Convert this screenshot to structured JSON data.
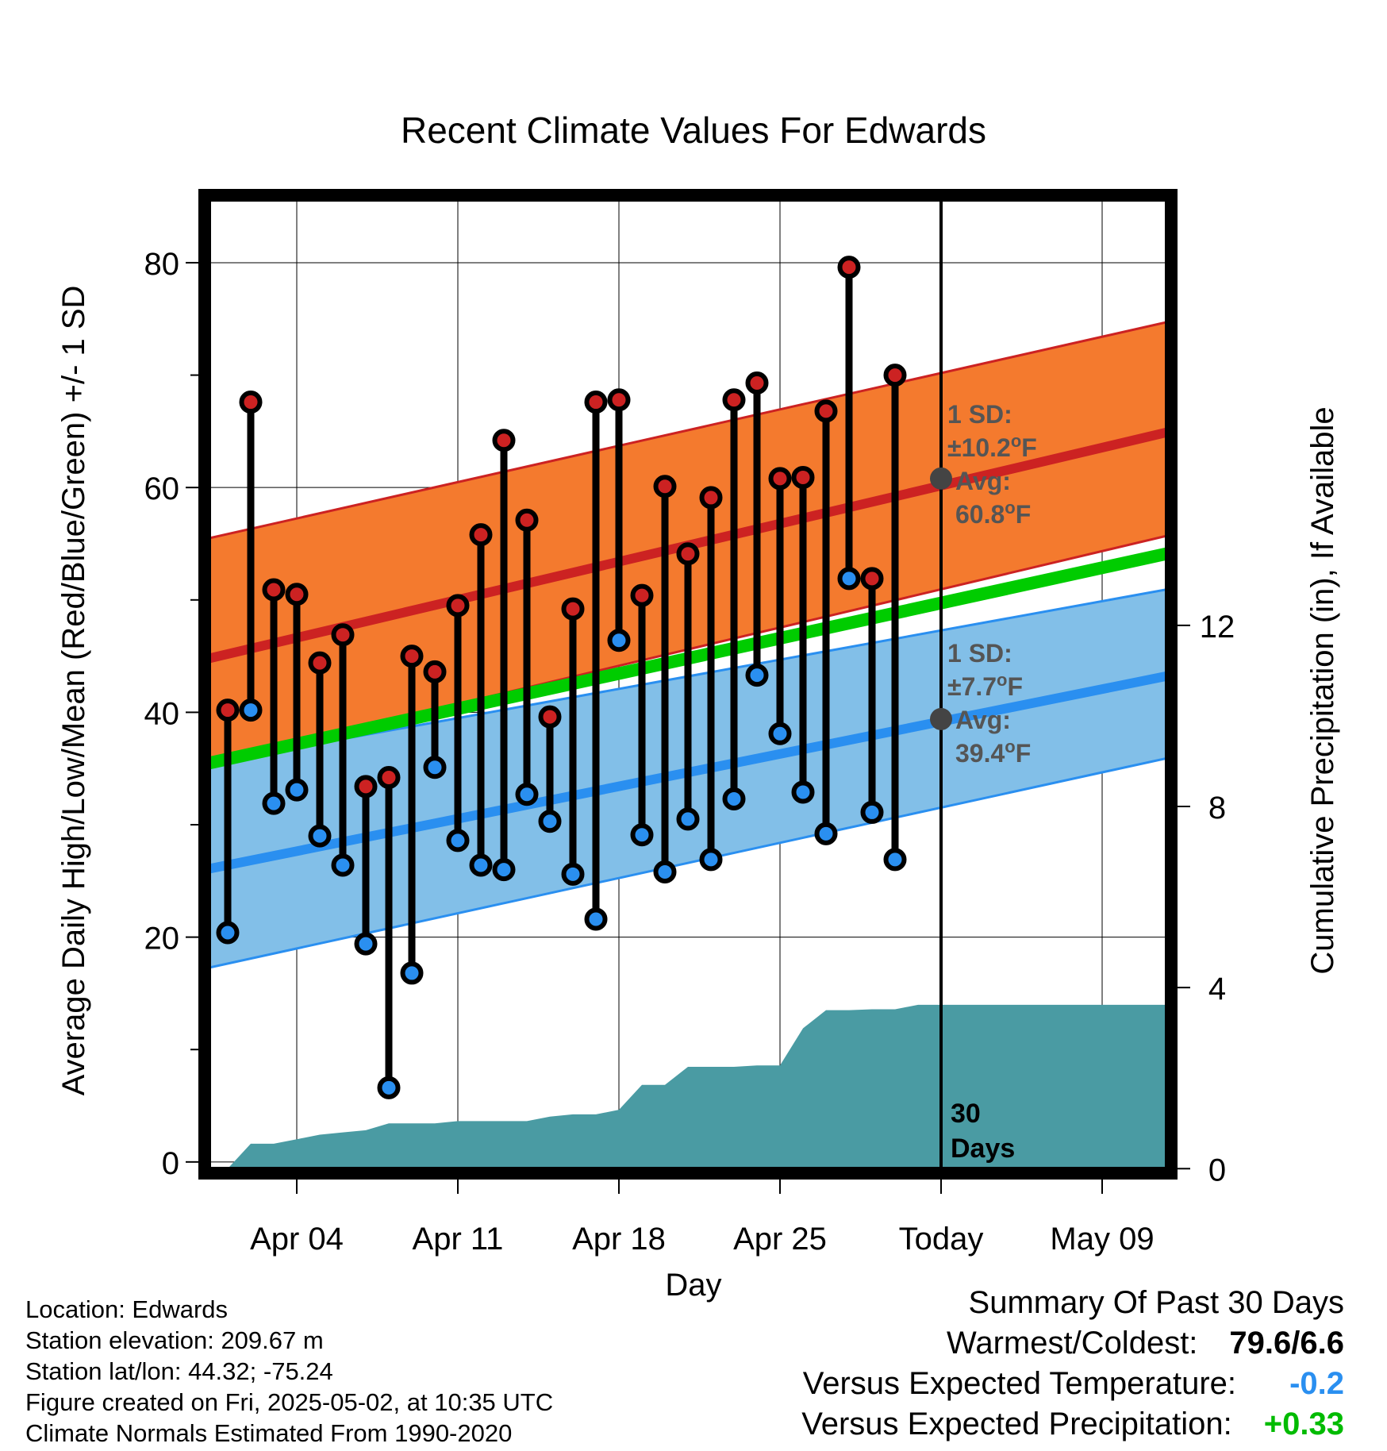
{
  "chart_data": {
    "type": "line",
    "title": "Recent Climate Values For Edwards",
    "xlabel": "Day",
    "ylabel_left": "Average Daily High/Low/Mean (Red/Blue/Green) +/- 1 SD",
    "ylabel_right": "Cumulative Precipitation (in), If Available",
    "y_left_range": [
      -1,
      86
    ],
    "y_left_ticks": [
      "0",
      "20",
      "40",
      "60",
      "80"
    ],
    "y_left_tick_values": [
      0,
      20,
      40,
      60,
      80
    ],
    "y_right_range": [
      -0.1,
      21.5
    ],
    "y_right_ticks": [
      "0",
      "4",
      "8",
      "12"
    ],
    "y_right_tick_values": [
      0,
      4,
      8,
      12
    ],
    "x_range": [
      "2025-03-31",
      "2025-05-12"
    ],
    "x_ticks": [
      {
        "date": "2025-04-04",
        "label": "Apr 04"
      },
      {
        "date": "2025-04-11",
        "label": "Apr 11"
      },
      {
        "date": "2025-04-18",
        "label": "Apr 18"
      },
      {
        "date": "2025-04-25",
        "label": "Apr 25"
      },
      {
        "date": "2025-05-02",
        "label": "Today"
      },
      {
        "date": "2025-05-09",
        "label": "May 09"
      }
    ],
    "today": "2025-05-02",
    "today_label": "30\nDays",
    "normals": {
      "dates": [
        "2025-03-31",
        "2025-05-12"
      ],
      "high_mean": [
        44.7,
        65.0
      ],
      "high_upper": [
        55.4,
        74.8
      ],
      "high_lower": [
        35.4,
        55.8
      ],
      "low_mean": [
        26.0,
        43.3
      ],
      "low_upper": [
        35.4,
        51.0
      ],
      "low_lower": [
        17.2,
        36.0
      ],
      "avg_mean": [
        35.4,
        54.2
      ]
    },
    "annotations": {
      "high": {
        "sd_label": "1 SD:",
        "sd_value": "±10.2",
        "avg_label": "Avg:",
        "avg_value": "60.8",
        "unit": "F",
        "value": 60.8
      },
      "low": {
        "sd_label": "1 SD:",
        "sd_value": "±7.7",
        "avg_label": "Avg:",
        "avg_value": "39.4",
        "unit": "F",
        "value": 39.4
      }
    },
    "daily": {
      "dates": [
        "2025-04-01",
        "2025-04-02",
        "2025-04-03",
        "2025-04-04",
        "2025-04-05",
        "2025-04-06",
        "2025-04-07",
        "2025-04-08",
        "2025-04-09",
        "2025-04-10",
        "2025-04-11",
        "2025-04-12",
        "2025-04-13",
        "2025-04-14",
        "2025-04-15",
        "2025-04-16",
        "2025-04-17",
        "2025-04-18",
        "2025-04-19",
        "2025-04-20",
        "2025-04-21",
        "2025-04-22",
        "2025-04-23",
        "2025-04-24",
        "2025-04-25",
        "2025-04-26",
        "2025-04-27",
        "2025-04-28",
        "2025-04-29",
        "2025-04-30",
        "2025-05-01"
      ],
      "high": [
        40.2,
        67.6,
        50.9,
        50.5,
        44.4,
        46.9,
        33.4,
        34.2,
        45.0,
        43.6,
        49.5,
        55.8,
        64.2,
        57.1,
        39.6,
        49.2,
        67.6,
        67.8,
        50.4,
        60.1,
        54.1,
        59.1,
        67.8,
        69.3,
        60.8,
        60.9,
        66.8,
        79.6,
        51.9,
        70.0,
        null
      ],
      "low": [
        20.4,
        40.2,
        31.9,
        33.1,
        29.0,
        26.4,
        19.4,
        6.6,
        16.8,
        35.1,
        28.6,
        26.4,
        26.0,
        32.7,
        30.3,
        25.6,
        21.6,
        46.4,
        29.1,
        25.8,
        30.5,
        26.9,
        32.3,
        43.3,
        38.1,
        32.9,
        29.2,
        51.9,
        31.1,
        26.9,
        null
      ]
    },
    "precipitation": {
      "dates": [
        "2025-03-31",
        "2025-04-01",
        "2025-04-02",
        "2025-04-03",
        "2025-04-04",
        "2025-04-05",
        "2025-04-06",
        "2025-04-07",
        "2025-04-08",
        "2025-04-09",
        "2025-04-10",
        "2025-04-11",
        "2025-04-12",
        "2025-04-13",
        "2025-04-14",
        "2025-04-15",
        "2025-04-16",
        "2025-04-17",
        "2025-04-18",
        "2025-04-19",
        "2025-04-20",
        "2025-04-21",
        "2025-04-22",
        "2025-04-23",
        "2025-04-24",
        "2025-04-25",
        "2025-04-26",
        "2025-04-27",
        "2025-04-28",
        "2025-04-29",
        "2025-04-30",
        "2025-05-01",
        "2025-05-12"
      ],
      "cumulative": [
        0.0,
        0.0,
        0.55,
        0.55,
        0.65,
        0.75,
        0.8,
        0.85,
        1.0,
        1.0,
        1.0,
        1.05,
        1.05,
        1.05,
        1.05,
        1.15,
        1.2,
        1.2,
        1.3,
        1.85,
        1.85,
        2.25,
        2.25,
        2.25,
        2.28,
        2.28,
        3.1,
        3.5,
        3.5,
        3.52,
        3.52,
        3.62,
        3.62
      ]
    },
    "colors": {
      "high": "#cc2222",
      "high_band": "#f47a2e",
      "low": "#2a8ff0",
      "low_band": "#82bfe8",
      "mean": "#00cc00",
      "precip": "#4a9ba3",
      "annotation": "#555555"
    },
    "grid": true
  },
  "info": {
    "location": "Location: Edwards",
    "elevation": "Station elevation: 209.67 m",
    "latlon": "Station lat/lon: 44.32; -75.24",
    "created": "Figure created on Fri, 2025-05-02, at 10:35 UTC",
    "normals": "Climate Normals Estimated From 1990-2020"
  },
  "summary": {
    "title": "Summary Of Past 30 Days",
    "warmest_label": "Warmest/Coldest:",
    "warmest_value": "79.6/6.6",
    "temp_label": "Versus Expected Temperature:",
    "temp_value": "-0.2",
    "temp_color": "#2a8ff0",
    "precip_label": "Versus Expected Precipitation:",
    "precip_value": "+0.33",
    "precip_color": "#00bb00"
  }
}
